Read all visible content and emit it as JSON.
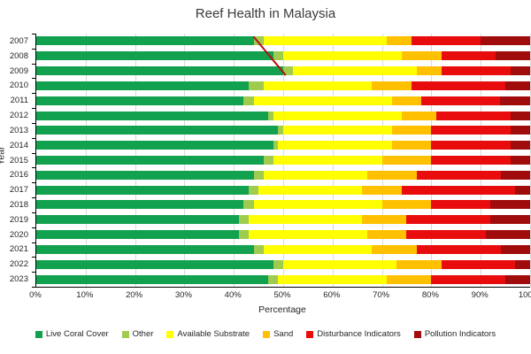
{
  "title": "Reef Health in Malaysia",
  "chart_data": {
    "type": "bar",
    "orientation": "horizontal",
    "stacked": true,
    "title": "Reef Health in Malaysia",
    "xlabel": "Percentage",
    "ylabel": "Year",
    "xlim": [
      0,
      100
    ],
    "grid": true,
    "legend_position": "bottom",
    "x_ticks": [
      "0%",
      "10%",
      "20%",
      "30%",
      "40%",
      "50%",
      "60%",
      "70%",
      "80%",
      "90%",
      "100%"
    ],
    "categories": [
      "2007",
      "2008",
      "2009",
      "2010",
      "2011",
      "2012",
      "2013",
      "2014",
      "2015",
      "2016",
      "2017",
      "2018",
      "2019",
      "2020",
      "2021",
      "2022",
      "2023"
    ],
    "series": [
      {
        "name": "Live Coral Cover",
        "color": "#12A14F",
        "values": [
          44,
          48,
          50,
          43,
          42,
          47,
          49,
          48,
          46,
          44,
          43,
          42,
          41,
          41,
          44,
          48,
          47
        ]
      },
      {
        "name": "Other",
        "color": "#9FCB4F",
        "values": [
          2,
          2,
          2,
          3,
          2,
          1,
          1,
          1,
          2,
          2,
          2,
          2,
          2,
          2,
          2,
          2,
          2
        ]
      },
      {
        "name": "Available Substrate",
        "color": "#FFFF00",
        "values": [
          25,
          24,
          25,
          22,
          28,
          26,
          22,
          23,
          22,
          21,
          21,
          26,
          23,
          24,
          22,
          23,
          22
        ]
      },
      {
        "name": "Sand",
        "color": "#FFC000",
        "values": [
          5,
          8,
          5,
          8,
          6,
          7,
          8,
          8,
          10,
          10,
          8,
          10,
          9,
          8,
          9,
          9,
          9
        ]
      },
      {
        "name": "Disturbance Indicators",
        "color": "#E80C0C",
        "values": [
          14,
          11,
          14,
          19,
          16,
          15,
          16,
          16,
          16,
          17,
          23,
          12,
          17,
          16,
          17,
          15,
          15
        ]
      },
      {
        "name": "Pollution Indicators",
        "color": "#A00B0B",
        "values": [
          10,
          7,
          4,
          5,
          6,
          4,
          4,
          4,
          4,
          6,
          3,
          8,
          8,
          9,
          6,
          3,
          5
        ]
      }
    ],
    "annotation": {
      "type": "line",
      "color": "#B40F0F",
      "x1_pct": 44,
      "row1": 0,
      "edge1": "top",
      "x2_pct": 50.5,
      "row2": 2,
      "edge2": "bottom"
    }
  }
}
